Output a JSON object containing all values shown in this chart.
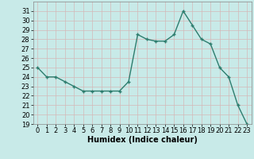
{
  "x": [
    0,
    1,
    2,
    3,
    4,
    5,
    6,
    7,
    8,
    9,
    10,
    11,
    12,
    13,
    14,
    15,
    16,
    17,
    18,
    19,
    20,
    21,
    22,
    23
  ],
  "y": [
    25,
    24,
    24,
    23.5,
    23,
    22.5,
    22.5,
    22.5,
    22.5,
    22.5,
    23.5,
    28.5,
    28,
    27.8,
    27.8,
    28.5,
    31,
    29.5,
    28,
    27.5,
    25,
    24,
    21,
    19
  ],
  "line_color": "#2d7d6e",
  "marker": "+",
  "markersize": 3,
  "linewidth": 1.0,
  "bg_color": "#c8eae8",
  "grid_color": "#b0d4d0",
  "xlabel": "Humidex (Indice chaleur)",
  "ylim": [
    19,
    32
  ],
  "xlim": [
    -0.5,
    23.5
  ],
  "yticks": [
    19,
    20,
    21,
    22,
    23,
    24,
    25,
    26,
    27,
    28,
    29,
    30,
    31
  ],
  "xticks": [
    0,
    1,
    2,
    3,
    4,
    5,
    6,
    7,
    8,
    9,
    10,
    11,
    12,
    13,
    14,
    15,
    16,
    17,
    18,
    19,
    20,
    21,
    22,
    23
  ],
  "xlabel_fontsize": 7,
  "tick_fontsize": 6,
  "title": ""
}
